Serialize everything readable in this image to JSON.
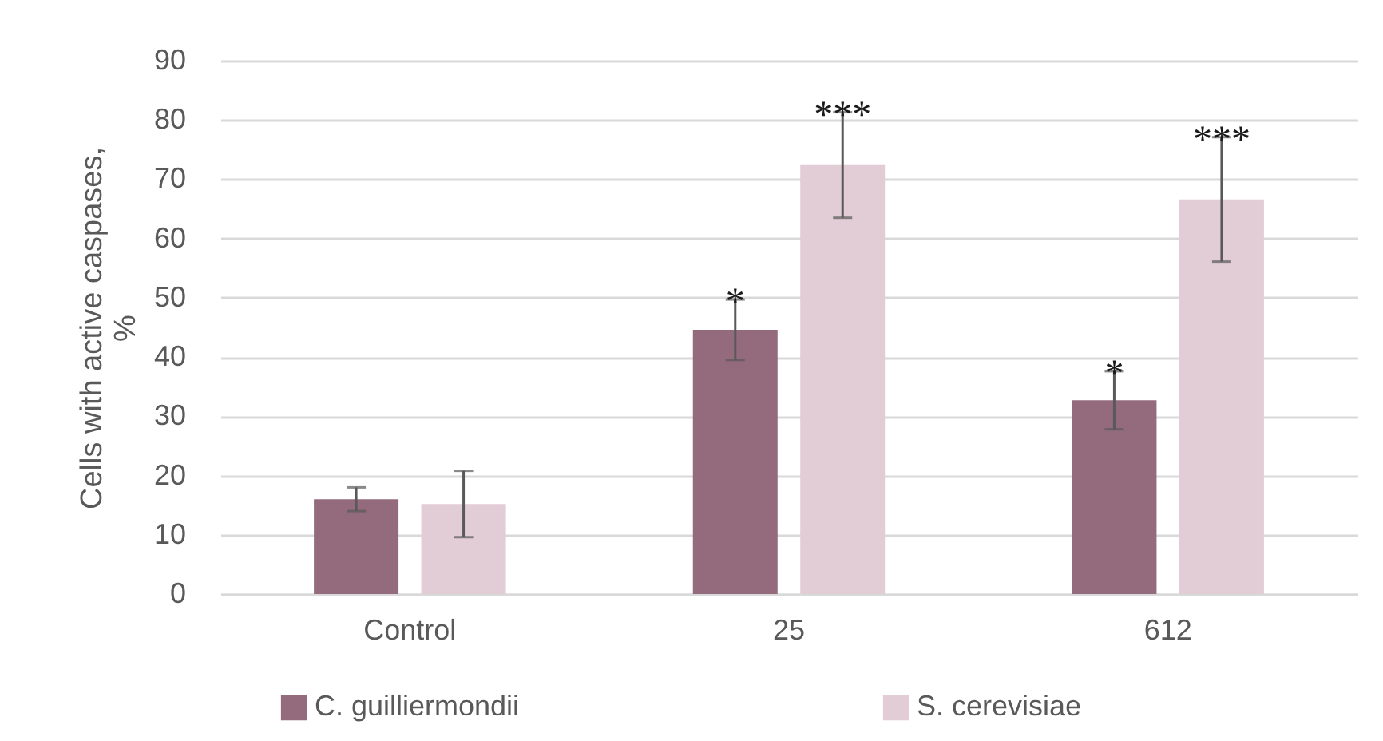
{
  "chart_data": {
    "type": "bar",
    "ylabel": "Cells with active caspases, %",
    "categories": [
      "Control",
      "25",
      "612"
    ],
    "series": [
      {
        "name": "C. guilliermondii",
        "color": "#946b7c",
        "values": [
          16,
          44.6,
          32.7
        ],
        "errors": [
          2,
          5.1,
          4.9
        ],
        "value_labels": [
          null,
          "*",
          "*"
        ]
      },
      {
        "name": "S. cerevisiae",
        "color": "#e2ccd5",
        "values": [
          15.2,
          72.4,
          66.6
        ],
        "errors": [
          5.6,
          8.9,
          10.5
        ],
        "value_labels": [
          null,
          "***",
          "***"
        ]
      }
    ],
    "ylim": [
      0,
      90
    ],
    "yticks": [
      0,
      10,
      20,
      30,
      40,
      50,
      60,
      70,
      80,
      90
    ],
    "grid": "y",
    "legend": "bottom"
  }
}
